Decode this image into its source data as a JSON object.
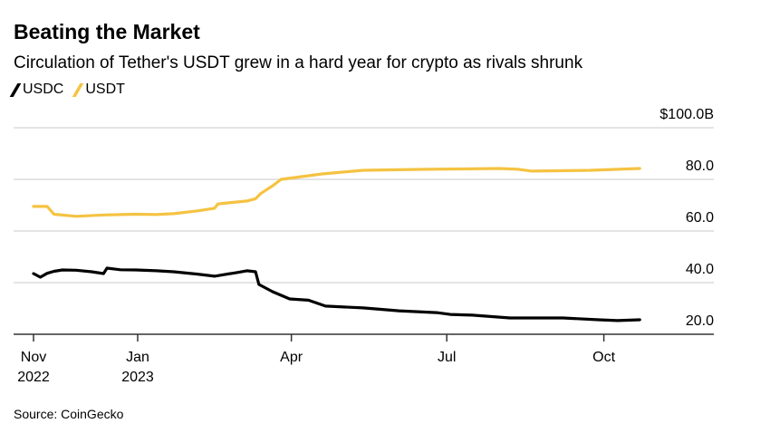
{
  "title": "Beating the Market",
  "subtitle": "Circulation of Tether's USDT grew in a hard year for crypto as rivals shrunk",
  "source": "Source: CoinGecko",
  "chart_data": {
    "type": "line",
    "title": "Beating the Market",
    "ylim": [
      20,
      100
    ],
    "y_ticks": [
      {
        "value": 100,
        "label": "$100.0B"
      },
      {
        "value": 80,
        "label": "80.0"
      },
      {
        "value": 60,
        "label": "60.0"
      },
      {
        "value": 40,
        "label": "40.0"
      },
      {
        "value": 20,
        "label": "20.0"
      }
    ],
    "y_axis_position": "right",
    "x_ticks": [
      {
        "date": "2022-11-01",
        "line1": "Nov",
        "line2": "2022"
      },
      {
        "date": "2023-01-01",
        "line1": "Jan",
        "line2": "2023"
      },
      {
        "date": "2023-04-01",
        "line1": "Apr",
        "line2": ""
      },
      {
        "date": "2023-07-01",
        "line1": "Jul",
        "line2": ""
      },
      {
        "date": "2023-10-01",
        "line1": "Oct",
        "line2": ""
      }
    ],
    "grid": true,
    "legend_position": "top-left",
    "series": [
      {
        "name": "USDC",
        "color": "#000000",
        "points": [
          [
            "2022-11-01",
            43.5
          ],
          [
            "2022-11-05",
            42.1
          ],
          [
            "2022-11-09",
            43.6
          ],
          [
            "2022-11-13",
            44.4
          ],
          [
            "2022-11-18",
            44.9
          ],
          [
            "2022-11-26",
            44.8
          ],
          [
            "2022-12-05",
            44.2
          ],
          [
            "2022-12-12",
            43.5
          ],
          [
            "2022-12-14",
            45.6
          ],
          [
            "2022-12-22",
            45.0
          ],
          [
            "2022-12-31",
            44.9
          ],
          [
            "2023-01-12",
            44.6
          ],
          [
            "2023-01-22",
            44.2
          ],
          [
            "2023-02-05",
            43.3
          ],
          [
            "2023-02-15",
            42.5
          ],
          [
            "2023-02-28",
            43.9
          ],
          [
            "2023-03-06",
            44.6
          ],
          [
            "2023-03-11",
            44.2
          ],
          [
            "2023-03-13",
            39.3
          ],
          [
            "2023-03-21",
            36.5
          ],
          [
            "2023-03-31",
            33.7
          ],
          [
            "2023-04-11",
            33.2
          ],
          [
            "2023-04-21",
            30.9
          ],
          [
            "2023-05-13",
            30.2
          ],
          [
            "2023-06-03",
            29.1
          ],
          [
            "2023-06-25",
            28.4
          ],
          [
            "2023-07-03",
            27.7
          ],
          [
            "2023-07-16",
            27.4
          ],
          [
            "2023-08-07",
            26.3
          ],
          [
            "2023-09-07",
            26.3
          ],
          [
            "2023-09-28",
            25.6
          ],
          [
            "2023-10-09",
            25.3
          ],
          [
            "2023-10-22",
            25.6
          ]
        ]
      },
      {
        "name": "USDT",
        "color": "#F5C342",
        "points": [
          [
            "2022-11-01",
            69.5
          ],
          [
            "2022-11-09",
            69.5
          ],
          [
            "2022-11-13",
            66.5
          ],
          [
            "2022-11-26",
            65.7
          ],
          [
            "2022-12-12",
            66.2
          ],
          [
            "2022-12-31",
            66.5
          ],
          [
            "2023-01-12",
            66.4
          ],
          [
            "2023-01-22",
            66.7
          ],
          [
            "2023-02-05",
            67.8
          ],
          [
            "2023-02-15",
            68.8
          ],
          [
            "2023-02-17",
            70.5
          ],
          [
            "2023-03-06",
            71.6
          ],
          [
            "2023-03-11",
            72.5
          ],
          [
            "2023-03-14",
            74.5
          ],
          [
            "2023-03-21",
            77.5
          ],
          [
            "2023-03-26",
            80.0
          ],
          [
            "2023-04-19",
            82.1
          ],
          [
            "2023-05-13",
            83.5
          ],
          [
            "2023-06-19",
            83.9
          ],
          [
            "2023-08-01",
            84.2
          ],
          [
            "2023-08-12",
            83.9
          ],
          [
            "2023-08-20",
            83.2
          ],
          [
            "2023-09-23",
            83.5
          ],
          [
            "2023-10-22",
            84.2
          ]
        ]
      }
    ]
  }
}
